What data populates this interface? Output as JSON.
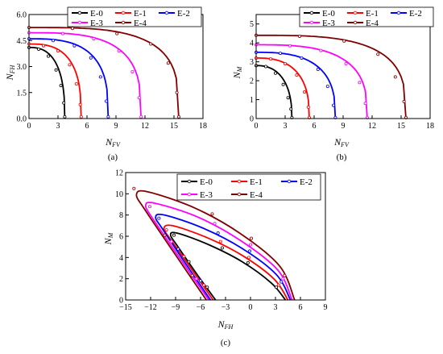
{
  "chart_data": [
    {
      "type": "line",
      "panel_label": "(a)",
      "xlabel": {
        "main": "N",
        "sub": "FV"
      },
      "ylabel": {
        "main": "N",
        "sub": "FH"
      },
      "xlim": [
        0,
        18
      ],
      "ylim": [
        0,
        6
      ],
      "xticks": [
        "0",
        "3",
        "6",
        "9",
        "12",
        "15",
        "18"
      ],
      "yticks": [
        "0.0",
        "1.5",
        "3.0",
        "4.5",
        "6.0"
      ],
      "xtickvals": [
        0,
        3,
        6,
        9,
        12,
        15,
        18
      ],
      "ytickvals": [
        0,
        1.5,
        3,
        4.5,
        6
      ],
      "legend_position": "top-right",
      "legend": [
        "E-0",
        "E-1",
        "E-2",
        "E-3",
        "E-4"
      ],
      "series": [
        {
          "name": "E-0",
          "color": "#000000",
          "p0": 4.1,
          "x_end": 3.7,
          "exp": 2.6,
          "markers": [
            [
              0,
              4.1
            ],
            [
              1.0,
              4.0
            ],
            [
              2.0,
              3.6
            ],
            [
              2.8,
              2.8
            ],
            [
              3.3,
              1.9
            ],
            [
              3.6,
              0.9
            ],
            [
              3.7,
              0.1
            ]
          ]
        },
        {
          "name": "E-1",
          "color": "#ff0000",
          "p0": 4.3,
          "x_end": 5.4,
          "exp": 2.8,
          "markers": [
            [
              0,
              4.3
            ],
            [
              1.5,
              4.2
            ],
            [
              3.0,
              3.9
            ],
            [
              4.2,
              3.1
            ],
            [
              4.9,
              2.0
            ],
            [
              5.3,
              0.8
            ],
            [
              5.4,
              0.1
            ]
          ]
        },
        {
          "name": "E-2",
          "color": "#0000ff",
          "p0": 4.6,
          "x_end": 8.2,
          "exp": 3.0,
          "markers": [
            [
              0,
              4.6
            ],
            [
              2.5,
              4.5
            ],
            [
              4.7,
              4.2
            ],
            [
              6.4,
              3.5
            ],
            [
              7.4,
              2.4
            ],
            [
              8.0,
              1.0
            ],
            [
              8.2,
              0.1
            ]
          ]
        },
        {
          "name": "E-3",
          "color": "#ff00ff",
          "p0": 4.95,
          "x_end": 11.6,
          "exp": 3.2,
          "markers": [
            [
              0,
              4.95
            ],
            [
              3.5,
              4.9
            ],
            [
              6.7,
              4.6
            ],
            [
              9.3,
              3.9
            ],
            [
              10.7,
              2.7
            ],
            [
              11.4,
              1.2
            ],
            [
              11.6,
              0.1
            ]
          ]
        },
        {
          "name": "E-4",
          "color": "#800000",
          "p0": 5.25,
          "x_end": 15.5,
          "exp": 3.5,
          "markers": [
            [
              0,
              5.25
            ],
            [
              4.5,
              5.2
            ],
            [
              9.1,
              4.9
            ],
            [
              12.6,
              4.3
            ],
            [
              14.4,
              3.2
            ],
            [
              15.3,
              1.5
            ],
            [
              15.5,
              0.1
            ]
          ]
        }
      ]
    },
    {
      "type": "line",
      "panel_label": "(b)",
      "xlabel": {
        "main": "N",
        "sub": "FV"
      },
      "ylabel": {
        "main": "N",
        "sub": "M"
      },
      "xlim": [
        0,
        18
      ],
      "ylim": [
        0,
        5.5
      ],
      "xticks": [
        "0",
        "3",
        "6",
        "9",
        "12",
        "15",
        "18"
      ],
      "yticks": [
        "0",
        "1",
        "2",
        "3",
        "4",
        "5"
      ],
      "xtickvals": [
        0,
        3,
        6,
        9,
        12,
        15,
        18
      ],
      "ytickvals": [
        0,
        1,
        2,
        3,
        4,
        5
      ],
      "legend_position": "top-right",
      "legend": [
        "E-0",
        "E-1",
        "E-2",
        "E-3",
        "E-4"
      ],
      "series": [
        {
          "name": "E-0",
          "color": "#000000",
          "p0": 2.8,
          "x_end": 3.7,
          "exp": 2.4,
          "markers": [
            [
              0,
              2.8
            ],
            [
              1.0,
              2.75
            ],
            [
              2.0,
              2.4
            ],
            [
              2.8,
              1.8
            ],
            [
              3.3,
              1.1
            ],
            [
              3.6,
              0.5
            ],
            [
              3.7,
              0.05
            ]
          ]
        },
        {
          "name": "E-1",
          "color": "#ff0000",
          "p0": 3.2,
          "x_end": 5.5,
          "exp": 2.6,
          "markers": [
            [
              0,
              3.2
            ],
            [
              1.5,
              3.15
            ],
            [
              3.0,
              2.9
            ],
            [
              4.2,
              2.3
            ],
            [
              5.0,
              1.4
            ],
            [
              5.4,
              0.6
            ],
            [
              5.5,
              0.05
            ]
          ]
        },
        {
          "name": "E-2",
          "color": "#0000ff",
          "p0": 3.5,
          "x_end": 8.2,
          "exp": 2.8,
          "markers": [
            [
              0,
              3.5
            ],
            [
              2.5,
              3.45
            ],
            [
              4.7,
              3.2
            ],
            [
              6.4,
              2.6
            ],
            [
              7.4,
              1.7
            ],
            [
              8.0,
              0.7
            ],
            [
              8.2,
              0.05
            ]
          ]
        },
        {
          "name": "E-3",
          "color": "#ff00ff",
          "p0": 3.9,
          "x_end": 11.5,
          "exp": 3.0,
          "markers": [
            [
              0,
              3.9
            ],
            [
              3.5,
              3.85
            ],
            [
              6.7,
              3.6
            ],
            [
              9.3,
              2.9
            ],
            [
              10.7,
              1.9
            ],
            [
              11.3,
              0.8
            ],
            [
              11.5,
              0.05
            ]
          ]
        },
        {
          "name": "E-4",
          "color": "#800000",
          "p0": 4.4,
          "x_end": 15.5,
          "exp": 3.3,
          "markers": [
            [
              0,
              4.4
            ],
            [
              4.5,
              4.35
            ],
            [
              9.1,
              4.1
            ],
            [
              12.6,
              3.4
            ],
            [
              14.4,
              2.2
            ],
            [
              15.3,
              0.9
            ],
            [
              15.5,
              0.05
            ]
          ]
        }
      ]
    },
    {
      "type": "line",
      "panel_label": "(c)",
      "xlabel": {
        "main": "N",
        "sub": "FH"
      },
      "ylabel": {
        "main": "N",
        "sub": "M"
      },
      "xlim": [
        -15,
        9
      ],
      "ylim": [
        0,
        12
      ],
      "xticks": [
        "−15",
        "−12",
        "−9",
        "−6",
        "−3",
        "0",
        "3",
        "6",
        "9"
      ],
      "yticks": [
        "0",
        "2",
        "4",
        "6",
        "8",
        "10",
        "12"
      ],
      "xtickvals": [
        -15,
        -12,
        -9,
        -6,
        -3,
        0,
        3,
        6,
        9
      ],
      "ytickvals": [
        0,
        2,
        4,
        6,
        8,
        10,
        12
      ],
      "legend_position": "top-center",
      "legend": [
        "E-0",
        "E-1",
        "E-2",
        "E-3",
        "E-4"
      ],
      "series": [
        {
          "name": "E-0",
          "color": "#000000",
          "points": [
            [
              -4.2,
              0
            ],
            [
              -6.5,
              2.5
            ],
            [
              -8.7,
              5.0
            ],
            [
              -9.6,
              6.1
            ],
            [
              -8.8,
              6.3
            ],
            [
              -5,
              5.2
            ],
            [
              -1,
              3.6
            ],
            [
              2.5,
              1.6
            ],
            [
              4.2,
              0
            ]
          ],
          "markers": [
            [
              -9.2,
              6.1
            ],
            [
              -7.4,
              3.6
            ],
            [
              -5.2,
              1.2
            ],
            [
              -3.4,
              4.9
            ],
            [
              -0.3,
              3.5
            ],
            [
              3.1,
              1.2
            ]
          ]
        },
        {
          "name": "E-1",
          "color": "#ff0000",
          "points": [
            [
              -4.5,
              0
            ],
            [
              -7,
              2.8
            ],
            [
              -9.5,
              5.6
            ],
            [
              -10.4,
              6.7
            ],
            [
              -9.4,
              7.0
            ],
            [
              -5.3,
              5.9
            ],
            [
              -1,
              4.2
            ],
            [
              2.8,
              2.0
            ],
            [
              4.5,
              0
            ]
          ],
          "markers": [
            [
              -10.1,
              6.6
            ],
            [
              -8.0,
              4.1
            ],
            [
              -5.6,
              1.4
            ],
            [
              -3.6,
              5.5
            ],
            [
              -0.2,
              4.0
            ],
            [
              3.4,
              1.4
            ]
          ]
        },
        {
          "name": "E-2",
          "color": "#0000ff",
          "points": [
            [
              -4.8,
              0
            ],
            [
              -7.6,
              3.2
            ],
            [
              -10.5,
              6.6
            ],
            [
              -11.4,
              7.8
            ],
            [
              -10.3,
              8.0
            ],
            [
              -5.8,
              6.8
            ],
            [
              -1.1,
              4.9
            ],
            [
              3.1,
              2.4
            ],
            [
              4.8,
              0
            ]
          ],
          "markers": [
            [
              -11.0,
              7.7
            ],
            [
              -8.7,
              4.8
            ],
            [
              -6.0,
              1.8
            ],
            [
              -3.9,
              6.3
            ],
            [
              -0.1,
              4.6
            ],
            [
              3.7,
              1.7
            ]
          ]
        },
        {
          "name": "E-3",
          "color": "#ff00ff",
          "points": [
            [
              -5.0,
              0
            ],
            [
              -8.2,
              3.6
            ],
            [
              -11.6,
              7.5
            ],
            [
              -12.6,
              8.9
            ],
            [
              -11.4,
              9.1
            ],
            [
              -6.3,
              7.8
            ],
            [
              -1.2,
              5.6
            ],
            [
              3.3,
              2.8
            ],
            [
              5.0,
              0
            ]
          ],
          "markers": [
            [
              -12.1,
              8.8
            ],
            [
              -9.5,
              5.5
            ],
            [
              -6.5,
              2.0
            ],
            [
              -4.3,
              7.2
            ],
            [
              0.0,
              5.2
            ],
            [
              3.9,
              2.0
            ]
          ]
        },
        {
          "name": "E-4",
          "color": "#800000",
          "points": [
            [
              -5.3,
              0
            ],
            [
              -8.8,
              4.0
            ],
            [
              -12.6,
              8.4
            ],
            [
              -13.7,
              9.9
            ],
            [
              -12.4,
              10.2
            ],
            [
              -6.8,
              8.7
            ],
            [
              -1.3,
              6.3
            ],
            [
              3.5,
              3.2
            ],
            [
              5.3,
              0
            ]
          ],
          "markers": [
            [
              -14.0,
              10.5
            ],
            [
              -10.3,
              6.1
            ],
            [
              -7.0,
              2.3
            ],
            [
              -4.6,
              8.1
            ],
            [
              0.1,
              5.8
            ],
            [
              4.1,
              2.3
            ]
          ]
        }
      ]
    }
  ]
}
